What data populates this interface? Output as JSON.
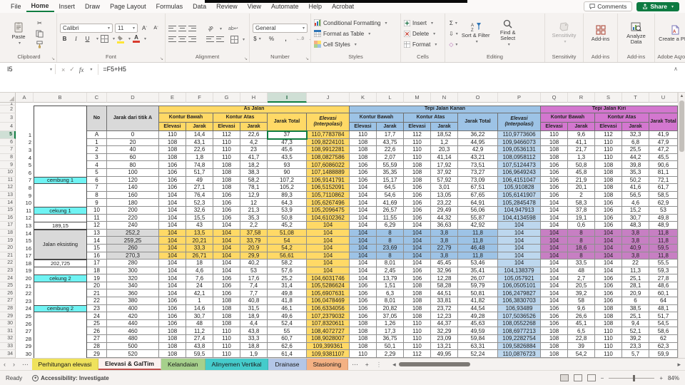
{
  "chrome": {
    "menu_tabs": [
      "File",
      "Home",
      "Insert",
      "Draw",
      "Page Layout",
      "Formulas",
      "Data",
      "Review",
      "View",
      "Automate",
      "Help",
      "Acrobat"
    ],
    "active_menu_tab": "Home",
    "comments_label": "Comments",
    "share_label": "Share",
    "ribbon": {
      "paste": "Paste",
      "font_name": "Calibri",
      "font_size": "11",
      "number_format": "General",
      "bold": "B",
      "italic": "I",
      "underline": "U",
      "currency": "$",
      "percent": "%",
      "comma": ",",
      "autosum": "Σ",
      "conditional_formatting": "Conditional Formatting",
      "format_as_table": "Format as Table",
      "cell_styles": "Cell Styles",
      "insert": "Insert",
      "delete": "Delete",
      "format": "Format",
      "sort_filter": "Sort & Filter",
      "find_select": "Find & Select",
      "sensitivity": "Sensitivity",
      "add_ins": "Add-ins",
      "analyze_data": "Analyze Data",
      "create_pdf": "Create a PDF",
      "groups": {
        "clipboard": "Clipboard",
        "font": "Font",
        "alignment": "Alignment",
        "number": "Number",
        "styles": "Styles",
        "cells": "Cells",
        "editing": "Editing",
        "sensitivity": "Sensitivity",
        "addins": "Add-ins",
        "acrobat": "Adobe Acrobat"
      }
    }
  },
  "formula_bar": {
    "name_box": "I5",
    "formula": "=F5+H5"
  },
  "sheet": {
    "columns": [
      "A",
      "B",
      "C",
      "D",
      "E",
      "F",
      "G",
      "H",
      "I",
      "J",
      "K",
      "L",
      "M",
      "N",
      "O",
      "P",
      "Q",
      "R",
      "S",
      "T",
      "U"
    ],
    "selected_column": "I",
    "selected_row": 5,
    "selected_cell": "I5",
    "row_header_range": [
      1,
      34
    ],
    "eksisting_label": "Jalan eksisting",
    "header": {
      "no": "No",
      "jarak_titik_a": "Jarak dari titik A",
      "as_jalan": "As Jalan",
      "tepi_kanan": "Tepi Jalan Kanan",
      "tepi_kiri": "Tepi Jalan Kiri",
      "kontur_bawah": "Kontur Bawah",
      "kontur_atas": "Kontur Atas",
      "elevasi": "Elevasi",
      "jarak": "Jarak",
      "jarak_total": "Jarak Total",
      "elevasi_interpolasi": "Elevasi (Interpolasi)"
    },
    "colors": {
      "as_jalan": "#FFD966",
      "tepi_kanan_header": "#9DC3E6",
      "tepi_kanan_value": "#BDD7EE",
      "tepi_kiri_header": "#D377CF",
      "tepi_kiri_highlight": "#C77FC3",
      "annotation_cyan": "#6FF3F3",
      "gray": "#D9D9D9",
      "selection_green": "#107C41"
    },
    "rows": [
      {
        "n": "1",
        "no": "A",
        "d": "0",
        "as": [
          "110",
          "14,4",
          "112",
          "22,6",
          "37",
          "110,7783784"
        ],
        "ka": [
          "110",
          "17,7",
          "112",
          "18,52",
          "36,22",
          "110,9773606"
        ],
        "ki": [
          "110",
          "9,6",
          "112",
          "32,3",
          "41,9"
        ]
      },
      {
        "n": "2",
        "no": "1",
        "d": "20",
        "as": [
          "108",
          "43,1",
          "110",
          "4,2",
          "47,3",
          "109,8224101"
        ],
        "ka": [
          "108",
          "43,75",
          "110",
          "1,2",
          "44,95",
          "109,9466073"
        ],
        "ki": [
          "108",
          "41,1",
          "110",
          "6,8",
          "47,9"
        ]
      },
      {
        "n": "3",
        "no": "2",
        "d": "40",
        "as": [
          "108",
          "22,6",
          "110",
          "23",
          "45,6",
          "108,9912281"
        ],
        "ka": [
          "108",
          "22,6",
          "110",
          "20,3",
          "42,9",
          "109,0536131"
        ],
        "ki": [
          "108",
          "21,7",
          "110",
          "25,5",
          "47,2"
        ]
      },
      {
        "n": "4",
        "no": "3",
        "d": "60",
        "as": [
          "108",
          "1,8",
          "110",
          "41,7",
          "43,5",
          "108,0827586"
        ],
        "ka": [
          "108",
          "2,07",
          "110",
          "41,14",
          "43,21",
          "108,0958112"
        ],
        "ki": [
          "108",
          "1,3",
          "110",
          "44,2",
          "45,5"
        ]
      },
      {
        "n": "5",
        "no": "4",
        "d": "80",
        "as": [
          "106",
          "74,8",
          "108",
          "18,2",
          "93",
          "107,6086022"
        ],
        "ka": [
          "106",
          "55,59",
          "108",
          "17,92",
          "73,51",
          "107,5124473"
        ],
        "ki": [
          "106",
          "50,8",
          "108",
          "39,8",
          "90,6"
        ]
      },
      {
        "n": "6",
        "no": "5",
        "d": "100",
        "as": [
          "106",
          "51,7",
          "108",
          "38,3",
          "90",
          "107,1488889"
        ],
        "ka": [
          "106",
          "35,35",
          "108",
          "37,92",
          "73,27",
          "106,9649243"
        ],
        "ki": [
          "106",
          "45,8",
          "108",
          "35,3",
          "81,1"
        ]
      },
      {
        "n": "7",
        "no": "6",
        "d": "120",
        "as": [
          "106",
          "49",
          "108",
          "58,2",
          "107,2",
          "106,9141791"
        ],
        "ka": [
          "106",
          "15,17",
          "108",
          "57,92",
          "73,09",
          "106,4151047"
        ],
        "ki": [
          "106",
          "21,9",
          "108",
          "50,2",
          "72,1"
        ],
        "note": "cembung 1",
        "note_bg": "cyan"
      },
      {
        "n": "8",
        "no": "7",
        "d": "140",
        "as": [
          "106",
          "27,1",
          "108",
          "78,1",
          "105,2",
          "106,5152091"
        ],
        "ka": [
          "104",
          "64,5",
          "106",
          "3,01",
          "67,51",
          "105,910828"
        ],
        "ki": [
          "106",
          "20,1",
          "108",
          "41,6",
          "61,7"
        ]
      },
      {
        "n": "9",
        "no": "8",
        "d": "160",
        "as": [
          "104",
          "76,4",
          "106",
          "12,9",
          "89,3",
          "105,7110862"
        ],
        "ka": [
          "104",
          "54,6",
          "106",
          "13,05",
          "67,65",
          "105,6141907"
        ],
        "ki": [
          "106",
          "2",
          "108",
          "56,5",
          "58,5"
        ]
      },
      {
        "n": "10",
        "no": "9",
        "d": "180",
        "as": [
          "104",
          "52,3",
          "106",
          "12",
          "64,3",
          "105,6267496"
        ],
        "ka": [
          "104",
          "41,69",
          "106",
          "23,22",
          "64,91",
          "105,2845478"
        ],
        "ki": [
          "104",
          "58,3",
          "106",
          "4,6",
          "62,9"
        ]
      },
      {
        "n": "11",
        "no": "10",
        "d": "200",
        "as": [
          "104",
          "32,6",
          "106",
          "21,3",
          "53,9",
          "105,2096475"
        ],
        "ka": [
          "104",
          "26,57",
          "106",
          "29,49",
          "56,06",
          "104,947913"
        ],
        "ki": [
          "104",
          "37,8",
          "106",
          "15,2",
          "53"
        ],
        "note": "cekung 1",
        "note_bg": "cyan"
      },
      {
        "n": "12",
        "no": "11",
        "d": "220",
        "as": [
          "104",
          "15,5",
          "106",
          "35,3",
          "50,8",
          "104,6102362"
        ],
        "ka": [
          "104",
          "11,55",
          "106",
          "44,32",
          "55,87",
          "104,4134598"
        ],
        "ki": [
          "104",
          "19,1",
          "106",
          "30,7",
          "49,8"
        ]
      },
      {
        "n": "13",
        "no": "12",
        "d": "240",
        "as": [
          "104",
          "43",
          "104",
          "2,2",
          "45,2",
          "104"
        ],
        "ka": [
          "104",
          "6,29",
          "104",
          "36,63",
          "42,92",
          "104"
        ],
        "ki": [
          "104",
          "0,6",
          "106",
          "48,3",
          "48,9"
        ],
        "note": "189,15"
      },
      {
        "n": "14",
        "no": "13",
        "d": "252,2",
        "as": [
          "104",
          "13,5",
          "104",
          "37,58",
          "51,08",
          "104"
        ],
        "ka": [
          "104",
          "8",
          "104",
          "3,8",
          "11,8",
          "104"
        ],
        "ki": [
          "104",
          "8",
          "104",
          "3,8",
          "11,8"
        ],
        "hl": true
      },
      {
        "n": "15",
        "no": "14",
        "d": "259,25",
        "as": [
          "104",
          "20,21",
          "104",
          "33,79",
          "54",
          "104"
        ],
        "ka": [
          "104",
          "8",
          "104",
          "3,8",
          "11,8",
          "104"
        ],
        "ki": [
          "104",
          "8",
          "104",
          "3,8",
          "11,8"
        ],
        "hl": true
      },
      {
        "n": "16",
        "no": "15",
        "d": "260",
        "as": [
          "104",
          "33,3",
          "104",
          "20,9",
          "54,2",
          "104"
        ],
        "ka": [
          "104",
          "23,69",
          "104",
          "22,79",
          "46,48",
          "104"
        ],
        "ki": [
          "104",
          "18,6",
          "104",
          "40,9",
          "59,5"
        ],
        "hl": true
      },
      {
        "n": "17",
        "no": "16",
        "d": "270,3",
        "as": [
          "104",
          "26,71",
          "104",
          "29,9",
          "56,61",
          "104"
        ],
        "ka": [
          "104",
          "8",
          "104",
          "3,8",
          "11,8",
          "104"
        ],
        "ki": [
          "104",
          "8",
          "104",
          "3,8",
          "11,8"
        ],
        "hl": true
      },
      {
        "n": "18",
        "no": "17",
        "d": "280",
        "as": [
          "104",
          "18",
          "104",
          "40,2",
          "58,2",
          "104"
        ],
        "ka": [
          "104",
          "8,01",
          "104",
          "45,45",
          "53,46",
          "104"
        ],
        "ki": [
          "104",
          "33,5",
          "104",
          "22",
          "55,5"
        ],
        "note": "202,725"
      },
      {
        "n": "19",
        "no": "18",
        "d": "300",
        "as": [
          "104",
          "4,6",
          "104",
          "53",
          "57,6",
          "104"
        ],
        "ka": [
          "104",
          "2,45",
          "106",
          "32,96",
          "35,41",
          "104,138379"
        ],
        "ki": [
          "104",
          "48",
          "104",
          "11,3",
          "59,3"
        ]
      },
      {
        "n": "20",
        "no": "19",
        "d": "320",
        "as": [
          "104",
          "7,6",
          "106",
          "17,6",
          "25,2",
          "104,6031746"
        ],
        "ka": [
          "104",
          "13,79",
          "106",
          "12,28",
          "26,07",
          "105,057921"
        ],
        "ki": [
          "104",
          "2,7",
          "106",
          "25,1",
          "27,8"
        ],
        "note": "cekung 2",
        "note_bg": "cyan"
      },
      {
        "n": "21",
        "no": "20",
        "d": "340",
        "as": [
          "104",
          "24",
          "106",
          "7,4",
          "31,4",
          "105,5286624"
        ],
        "ka": [
          "106",
          "1,51",
          "108",
          "58,28",
          "59,79",
          "106,0505101"
        ],
        "ki": [
          "104",
          "20,5",
          "106",
          "28,1",
          "48,6"
        ]
      },
      {
        "n": "22",
        "no": "21",
        "d": "360",
        "as": [
          "104",
          "42,1",
          "106",
          "7,7",
          "49,8",
          "105,6907631"
        ],
        "ka": [
          "106",
          "6,3",
          "108",
          "44,51",
          "50,81",
          "106,2479827"
        ],
        "ki": [
          "104",
          "39,2",
          "106",
          "20,9",
          "60,1"
        ]
      },
      {
        "n": "23",
        "no": "22",
        "d": "380",
        "as": [
          "106",
          "1",
          "108",
          "40,8",
          "41,8",
          "106,0478469"
        ],
        "ka": [
          "106",
          "8,01",
          "108",
          "33,81",
          "41,82",
          "106,3830703"
        ],
        "ki": [
          "104",
          "58",
          "106",
          "6",
          "64"
        ]
      },
      {
        "n": "24",
        "no": "23",
        "d": "400",
        "as": [
          "106",
          "14,6",
          "108",
          "31,5",
          "46,1",
          "106,6334056"
        ],
        "ka": [
          "106",
          "20,82",
          "108",
          "23,72",
          "44,54",
          "106,93489"
        ],
        "ki": [
          "106",
          "9,6",
          "108",
          "38,5",
          "48,1"
        ],
        "note": "cembung 2",
        "note_bg": "cyan"
      },
      {
        "n": "25",
        "no": "24",
        "d": "420",
        "as": [
          "106",
          "30,7",
          "108",
          "18,9",
          "49,6",
          "107,2379032"
        ],
        "ka": [
          "106",
          "37,05",
          "108",
          "12,23",
          "49,28",
          "107,5036526"
        ],
        "ki": [
          "106",
          "26,6",
          "108",
          "25,1",
          "51,7"
        ]
      },
      {
        "n": "26",
        "no": "25",
        "d": "440",
        "as": [
          "106",
          "48",
          "108",
          "4,4",
          "52,4",
          "107,8320611"
        ],
        "ka": [
          "108",
          "1,26",
          "110",
          "44,37",
          "45,63",
          "108,0552268"
        ],
        "ki": [
          "106",
          "45,1",
          "108",
          "9,4",
          "54,5"
        ]
      },
      {
        "n": "27",
        "no": "26",
        "d": "460",
        "as": [
          "108",
          "11,2",
          "110",
          "43,8",
          "55",
          "108,4072727"
        ],
        "ka": [
          "108",
          "17,3",
          "110",
          "32,29",
          "49,59",
          "108,6977213"
        ],
        "ki": [
          "108",
          "6,5",
          "110",
          "52,1",
          "58,6"
        ]
      },
      {
        "n": "28",
        "no": "27",
        "d": "480",
        "as": [
          "108",
          "27,4",
          "110",
          "33,3",
          "60,7",
          "108,9028007"
        ],
        "ka": [
          "108",
          "36,75",
          "110",
          "23,09",
          "59,84",
          "109,2282754"
        ],
        "ki": [
          "108",
          "22,8",
          "110",
          "39,2",
          "62"
        ]
      },
      {
        "n": "29",
        "no": "28",
        "d": "500",
        "as": [
          "108",
          "43,8",
          "110",
          "18,8",
          "62,6",
          "109,399361"
        ],
        "ka": [
          "108",
          "50,1",
          "110",
          "13,21",
          "63,31",
          "109,5826884"
        ],
        "ki": [
          "108",
          "39",
          "110",
          "23,3",
          "62,3"
        ]
      },
      {
        "n": "30",
        "no": "29",
        "d": "520",
        "as": [
          "108",
          "59,5",
          "110",
          "1,9",
          "61,4",
          "109,9381107"
        ],
        "ka": [
          "110",
          "2,29",
          "112",
          "49,95",
          "52,24",
          "110,0876723"
        ],
        "ki": [
          "108",
          "54,2",
          "110",
          "5,7",
          "59,9"
        ]
      }
    ]
  },
  "sheet_tabs": {
    "active": "Elevasi & GalTim",
    "tabs": [
      {
        "label": "Perhitungan elevasi",
        "color": "#EFE25C"
      },
      {
        "label": "Elevasi & GalTim",
        "color": "#E98C86"
      },
      {
        "label": "Kelandaian",
        "color": "#A6D08C"
      },
      {
        "label": "Alinyemen Vertikal",
        "color": "#45CBCB"
      },
      {
        "label": "Drainase",
        "color": "#B3C6E7"
      },
      {
        "label": "Stasioning",
        "color": "#F4B183"
      }
    ]
  },
  "status_bar": {
    "ready": "Ready",
    "accessibility": "Accessibility: Investigate",
    "zoom_level": "84%"
  }
}
